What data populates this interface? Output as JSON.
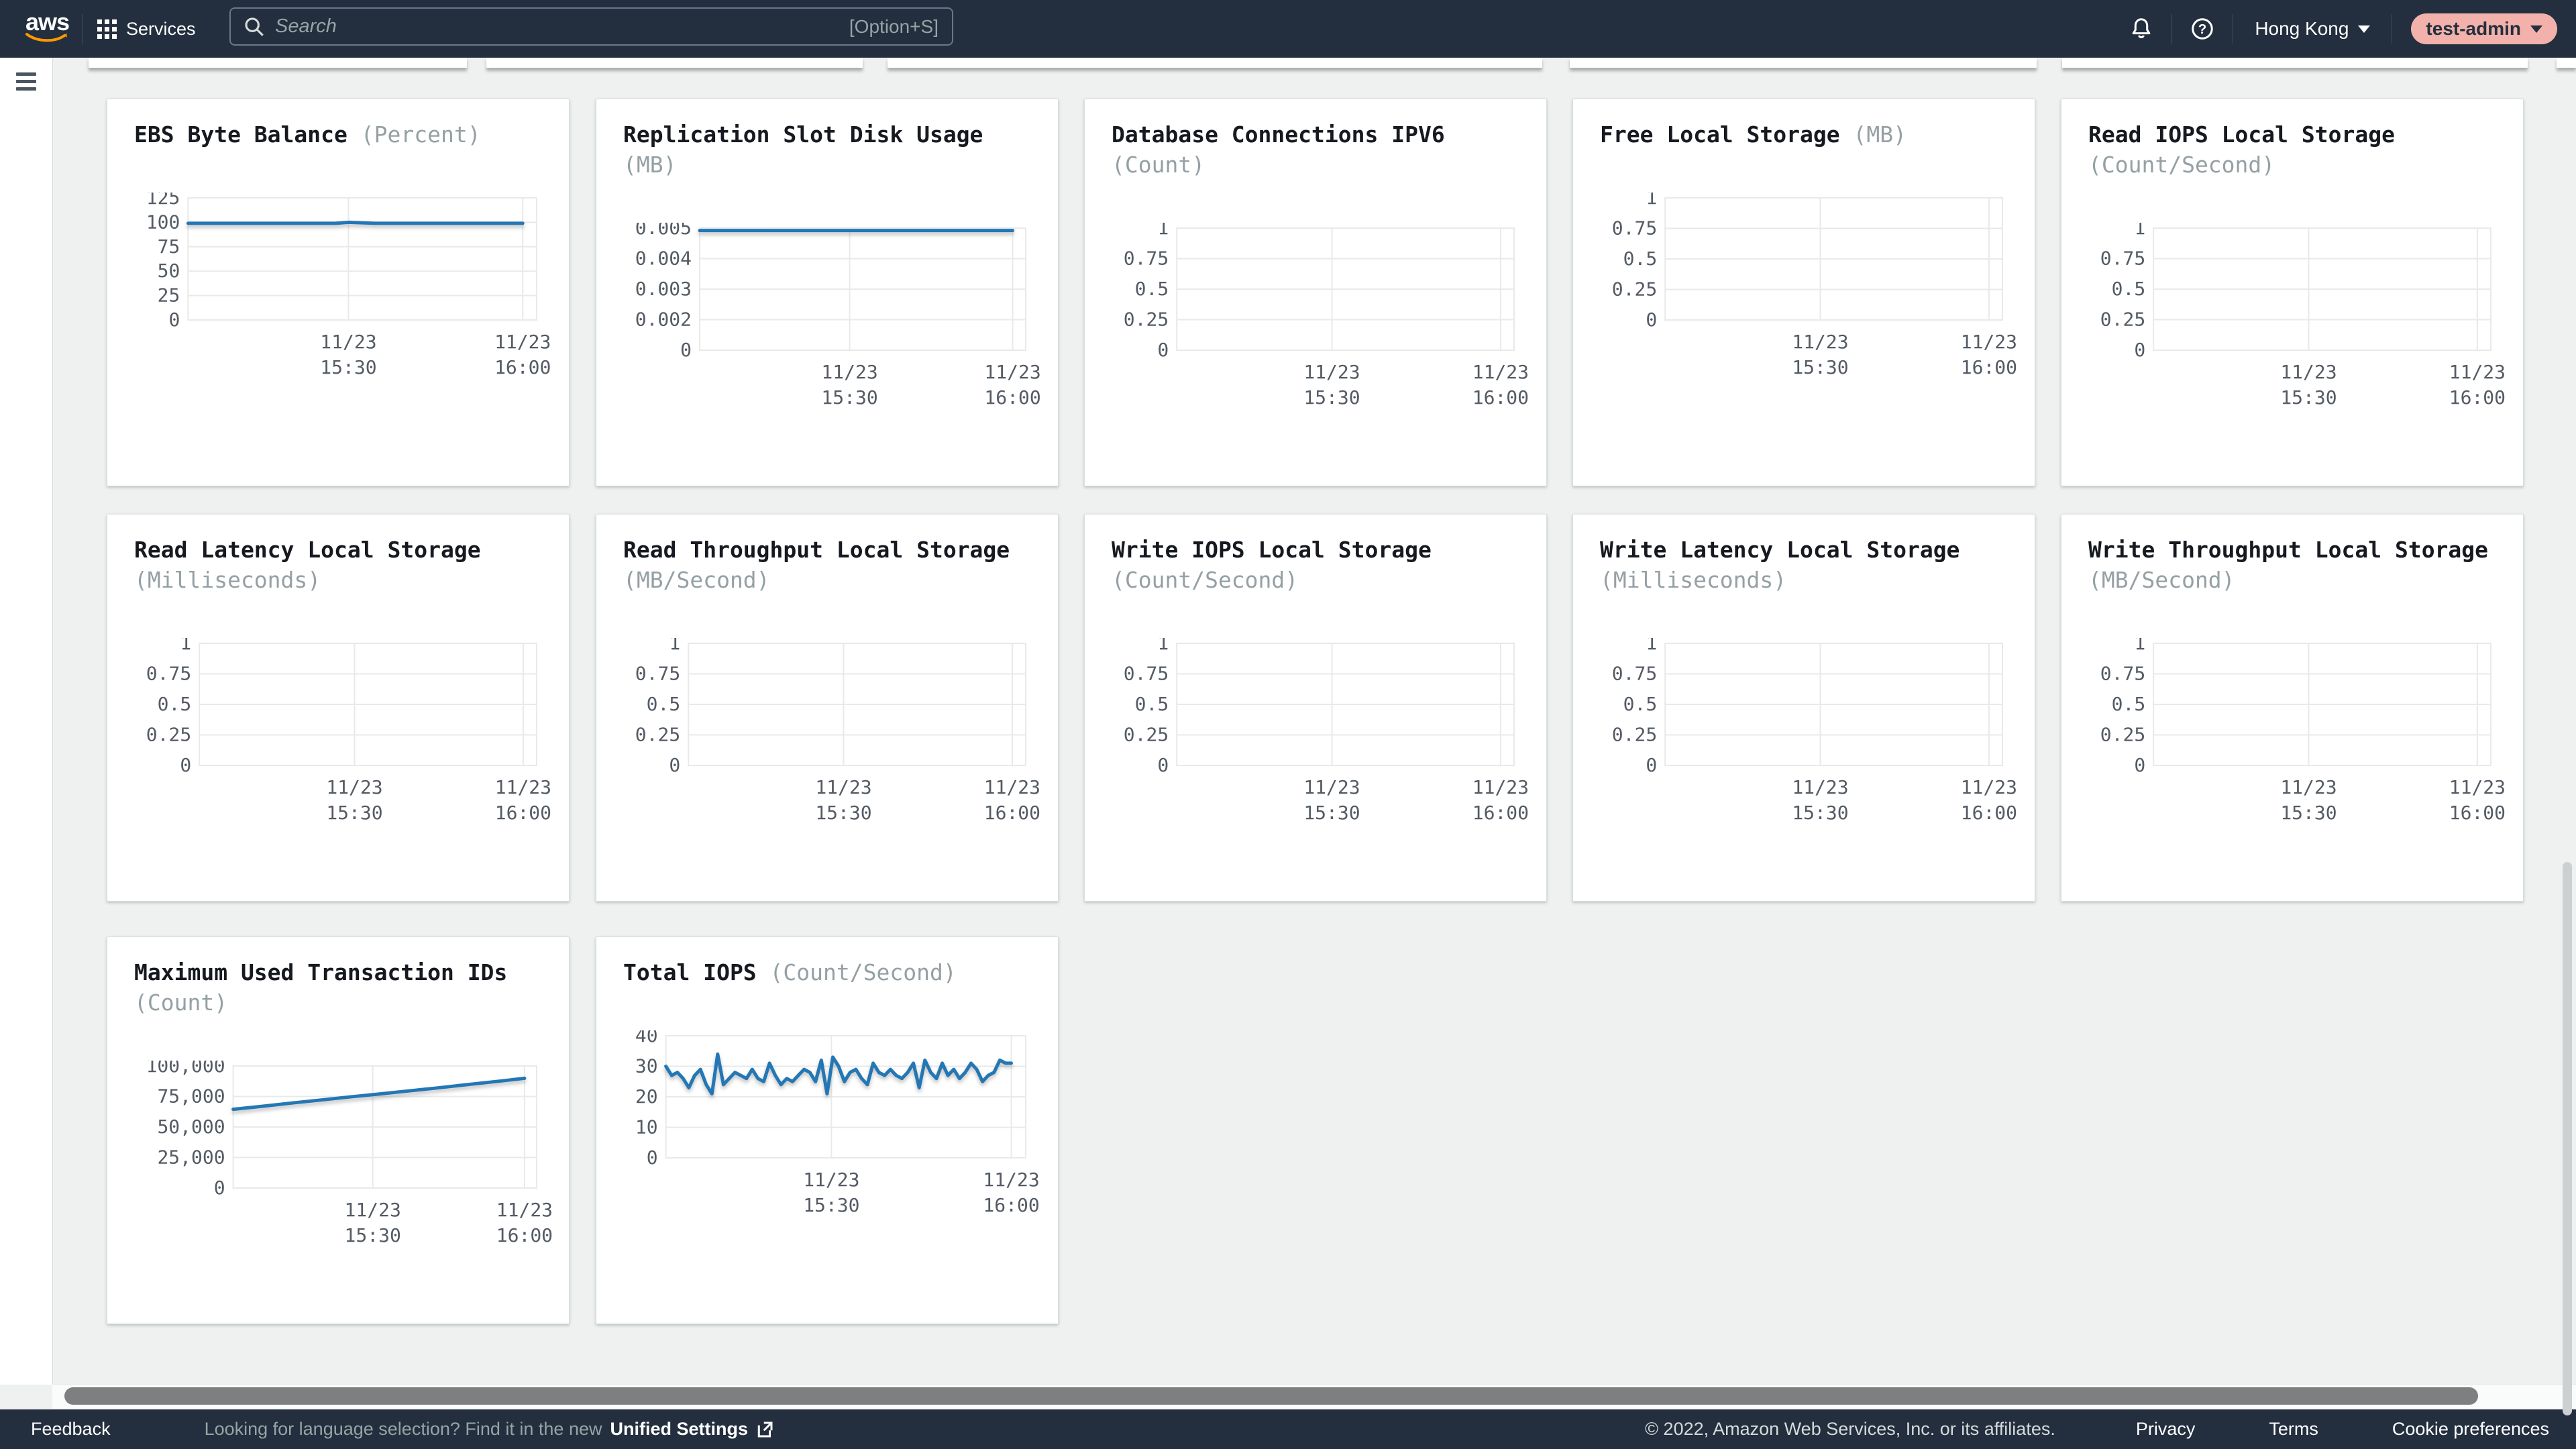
{
  "header": {
    "logo": "aws",
    "services_label": "Services",
    "search_placeholder": "Search",
    "search_shortcut": "[Option+S]",
    "region": "Hong Kong",
    "account": "test-admin"
  },
  "footer": {
    "feedback": "Feedback",
    "language_hint": "Looking for language selection? Find it in the new",
    "unified_settings": "Unified Settings",
    "copyright": "© 2022, Amazon Web Services, Inc. or its affiliates.",
    "links": [
      "Privacy",
      "Terms",
      "Cookie preferences"
    ]
  },
  "colors": {
    "header_bg": "#232f3e",
    "line_blue": "#2377b4",
    "account_pill": "#f2b1aa",
    "grid_line": "#e8eaea",
    "tick_text": "#545b64"
  },
  "x_labels": [
    [
      "11/23",
      "15:30"
    ],
    [
      "11/23",
      "16:00"
    ]
  ],
  "chart_data": [
    {
      "type": "line",
      "title": "EBS Byte Balance",
      "unit": "(Percent)",
      "ticks": [
        "125",
        "100",
        "75",
        "50",
        "25",
        "0"
      ],
      "ymax": 125,
      "x": [
        "11/23 15:30",
        "11/23 16:00"
      ],
      "values": [
        99,
        99,
        99,
        99,
        99,
        99,
        99,
        99,
        99,
        99,
        99,
        99,
        100,
        99.5,
        99,
        99,
        99,
        99,
        99,
        99,
        99,
        99,
        99,
        99,
        99,
        99
      ]
    },
    {
      "type": "line",
      "title": "Replication Slot Disk Usage",
      "unit": "(MB)",
      "ticks": [
        "0.005",
        "0.004",
        "0.003",
        "0.002",
        "0"
      ],
      "ymax": 0.005,
      "x": [
        "11/23 15:30",
        "11/23 16:00"
      ],
      "values": [
        0.0049,
        0.0049
      ]
    },
    {
      "type": "line",
      "title": "Database Connections IPV6",
      "unit": "(Count)",
      "ticks": [
        "1",
        "0.75",
        "0.5",
        "0.25",
        "0"
      ],
      "ymax": 1,
      "x": [
        "11/23 15:30",
        "11/23 16:00"
      ],
      "values": null
    },
    {
      "type": "line",
      "title": "Free Local Storage",
      "unit": "(MB)",
      "ticks": [
        "1",
        "0.75",
        "0.5",
        "0.25",
        "0"
      ],
      "ymax": 1,
      "x": [
        "11/23 15:30",
        "11/23 16:00"
      ],
      "values": null
    },
    {
      "type": "line",
      "title": "Read IOPS Local Storage",
      "unit": "(Count/Second)",
      "ticks": [
        "1",
        "0.75",
        "0.5",
        "0.25",
        "0"
      ],
      "ymax": 1,
      "x": [
        "11/23 15:30",
        "11/23 16:00"
      ],
      "values": null
    },
    {
      "type": "line",
      "title": "Read Latency Local Storage",
      "unit": "(Milliseconds)",
      "ticks": [
        "1",
        "0.75",
        "0.5",
        "0.25",
        "0"
      ],
      "ymax": 1,
      "x": [
        "11/23 15:30",
        "11/23 16:00"
      ],
      "values": null
    },
    {
      "type": "line",
      "title": "Read Throughput Local Storage",
      "unit": "(MB/Second)",
      "ticks": [
        "1",
        "0.75",
        "0.5",
        "0.25",
        "0"
      ],
      "ymax": 1,
      "x": [
        "11/23 15:30",
        "11/23 16:00"
      ],
      "values": null
    },
    {
      "type": "line",
      "title": "Write IOPS Local Storage",
      "unit": "(Count/Second)",
      "ticks": [
        "1",
        "0.75",
        "0.5",
        "0.25",
        "0"
      ],
      "ymax": 1,
      "x": [
        "11/23 15:30",
        "11/23 16:00"
      ],
      "values": null
    },
    {
      "type": "line",
      "title": "Write Latency Local Storage",
      "unit": "(Milliseconds)",
      "ticks": [
        "1",
        "0.75",
        "0.5",
        "0.25",
        "0"
      ],
      "ymax": 1,
      "x": [
        "11/23 15:30",
        "11/23 16:00"
      ],
      "values": null
    },
    {
      "type": "line",
      "title": "Write Throughput Local Storage",
      "unit": "(MB/Second)",
      "ticks": [
        "1",
        "0.75",
        "0.5",
        "0.25",
        "0"
      ],
      "ymax": 1,
      "x": [
        "11/23 15:30",
        "11/23 16:00"
      ],
      "values": null
    },
    {
      "type": "line",
      "title": "Maximum Used Transaction IDs",
      "unit": "(Count)",
      "ticks": [
        "100,000",
        "75,000",
        "50,000",
        "25,000",
        "0"
      ],
      "ymax": 100000,
      "x": [
        "11/23 15:30",
        "11/23 16:00"
      ],
      "values": [
        64500,
        67000,
        69600,
        72100,
        74600,
        77000,
        79500,
        82000,
        84600,
        87200,
        89900
      ]
    },
    {
      "type": "line",
      "title": "Total IOPS",
      "unit": "(Count/Second)",
      "ticks": [
        "40",
        "30",
        "20",
        "10",
        "0"
      ],
      "ymax": 40,
      "x": [
        "11/23 15:30",
        "11/23 16:00"
      ],
      "values": [
        30,
        27,
        28,
        26,
        23,
        27,
        29,
        24,
        21,
        34,
        24,
        26,
        28,
        27,
        26,
        29,
        26,
        25,
        31,
        27,
        24,
        26,
        25,
        27,
        29,
        28,
        25,
        32,
        21,
        33,
        30,
        25,
        28,
        29,
        26,
        24,
        31,
        28,
        27,
        29,
        27,
        26,
        28,
        31,
        23,
        32,
        28,
        26,
        31,
        27,
        29,
        26,
        28,
        31,
        29,
        25,
        27,
        28,
        32,
        31,
        31
      ]
    }
  ]
}
